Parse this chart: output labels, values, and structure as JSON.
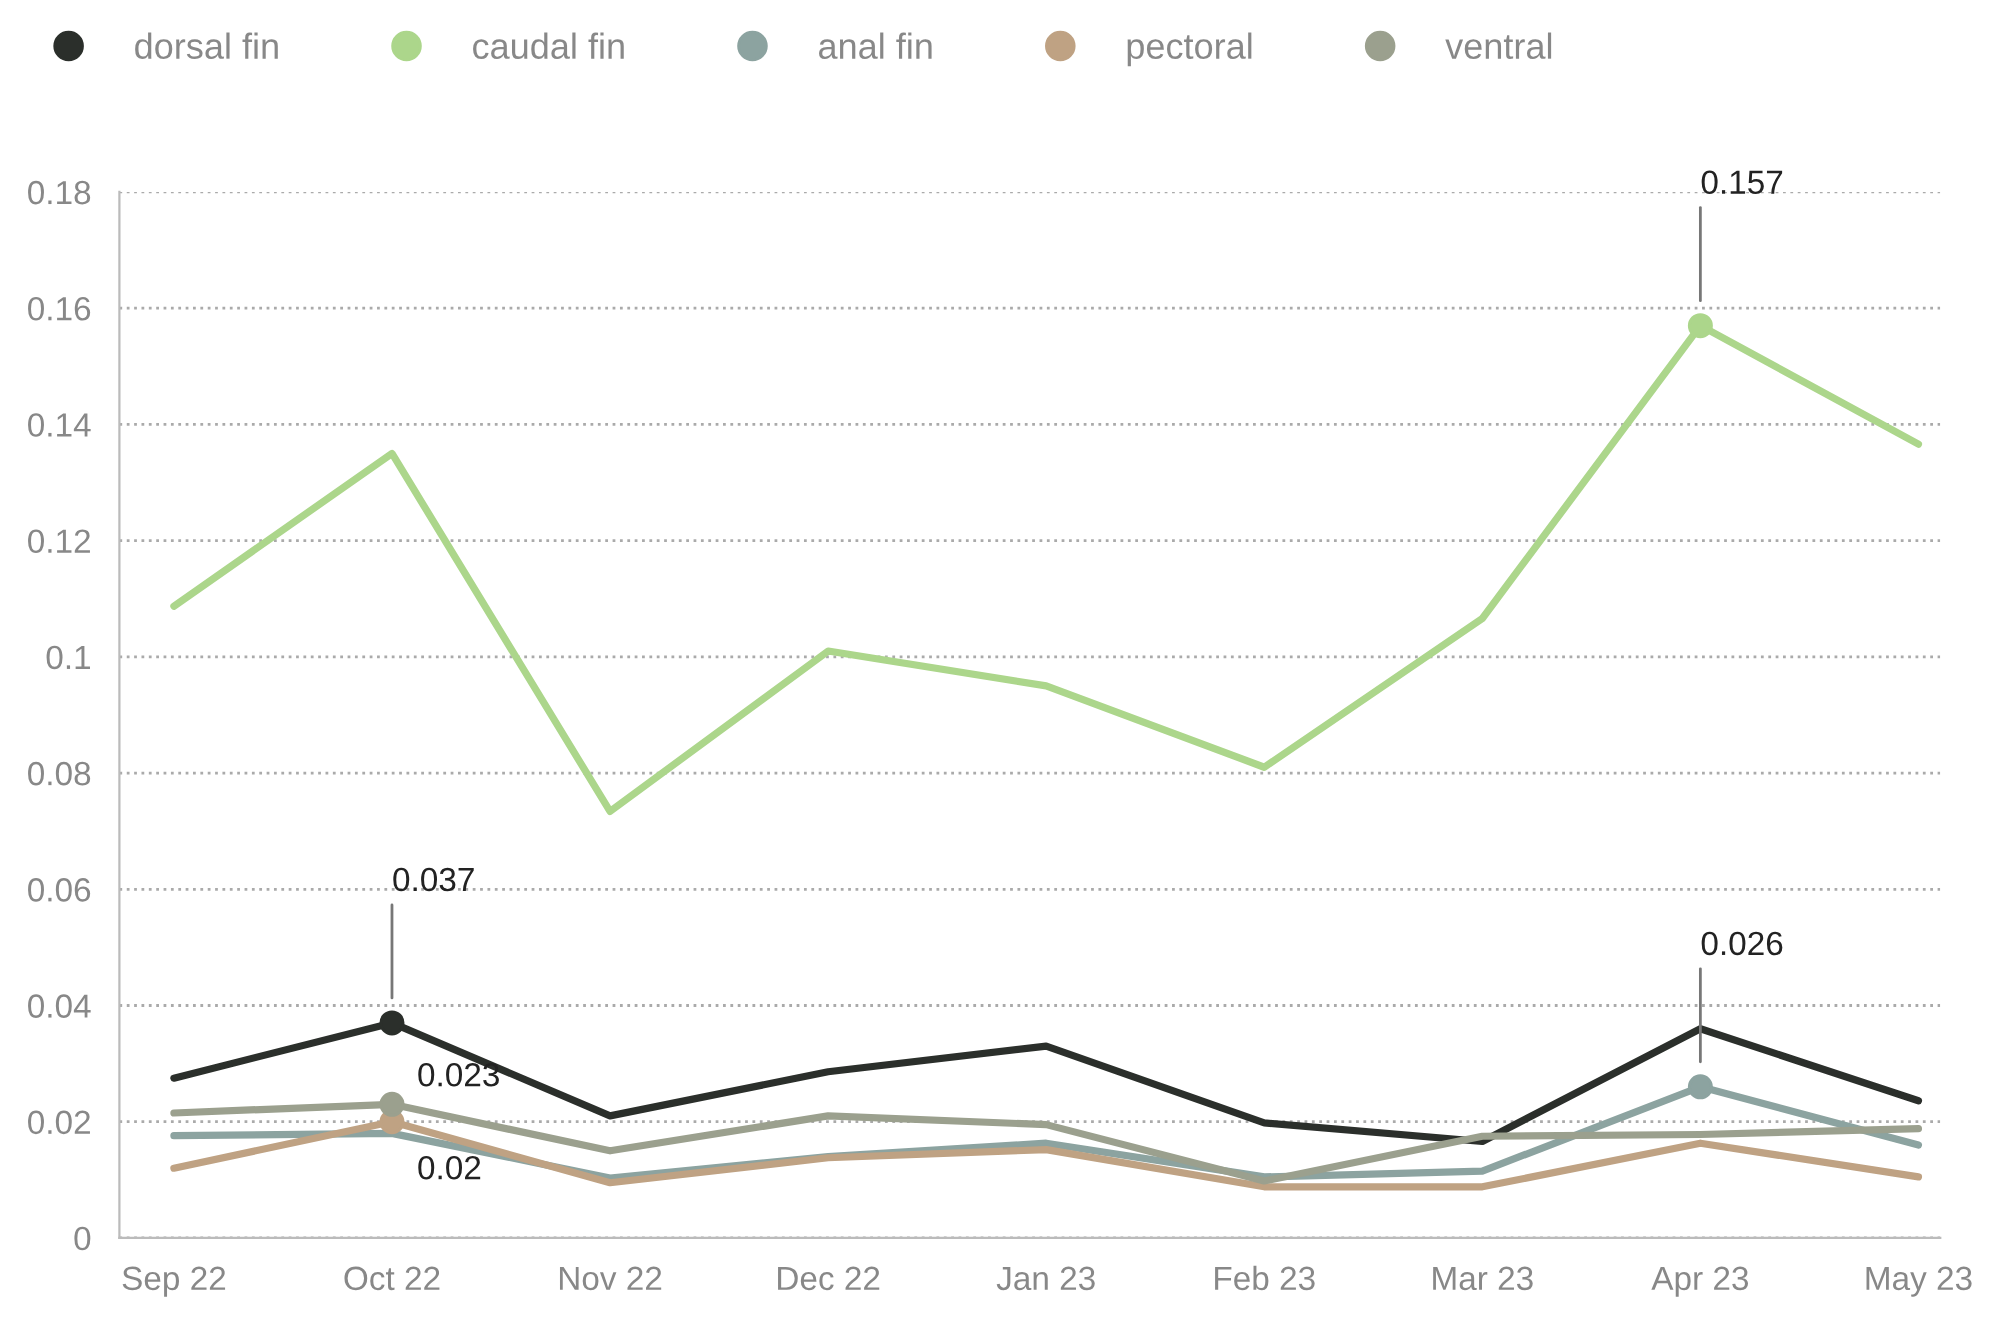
{
  "chart_data": {
    "type": "line",
    "categories": [
      "Sep 22",
      "Oct 22",
      "Nov 22",
      "Dec 22",
      "Jan 23",
      "Feb 23",
      "Mar 23",
      "Apr 23",
      "May 23"
    ],
    "series": [
      {
        "name": "dorsal fin",
        "color": "#2b2f2b",
        "values": [
          0.0275,
          0.037,
          0.021,
          0.0286,
          0.033,
          0.0198,
          0.0166,
          0.036,
          0.0236
        ],
        "value_labels": [
          null,
          "0.037",
          null,
          null,
          null,
          null,
          null,
          null,
          null
        ]
      },
      {
        "name": "caudal fin",
        "color": "#acd68b",
        "values": [
          0.1087,
          0.135,
          0.0734,
          0.101,
          0.095,
          0.081,
          0.1066,
          0.157,
          0.1366
        ],
        "value_labels": [
          null,
          null,
          null,
          null,
          null,
          null,
          null,
          "0.157",
          null
        ]
      },
      {
        "name": "anal fin",
        "color": "#8ca3a0",
        "values": [
          0.0176,
          0.018,
          0.0103,
          0.014,
          0.0163,
          0.0105,
          0.0115,
          0.026,
          0.016
        ],
        "value_labels": [
          null,
          null,
          null,
          null,
          null,
          null,
          null,
          "0.026",
          null
        ]
      },
      {
        "name": "pectoral",
        "color": "#bfa283",
        "values": [
          0.012,
          0.02,
          0.0095,
          0.0138,
          0.0152,
          0.0088,
          0.0088,
          0.0163,
          0.0105
        ],
        "value_labels": [
          null,
          "0.02",
          null,
          null,
          null,
          null,
          null,
          null,
          null
        ]
      },
      {
        "name": "ventral",
        "color": "#9ba08e",
        "values": [
          0.0215,
          0.023,
          0.015,
          0.021,
          0.0195,
          0.0098,
          0.0175,
          0.0178,
          0.0188
        ],
        "value_labels": [
          null,
          "0.023",
          null,
          null,
          null,
          null,
          null,
          null,
          null
        ]
      }
    ],
    "ylim": [
      0,
      0.18
    ],
    "yticks": [
      0,
      0.02,
      0.04,
      0.06,
      0.08,
      0.1,
      0.12,
      0.14,
      0.16,
      0.18
    ],
    "grid": "y",
    "legend": "top left",
    "line_style": "solid"
  }
}
